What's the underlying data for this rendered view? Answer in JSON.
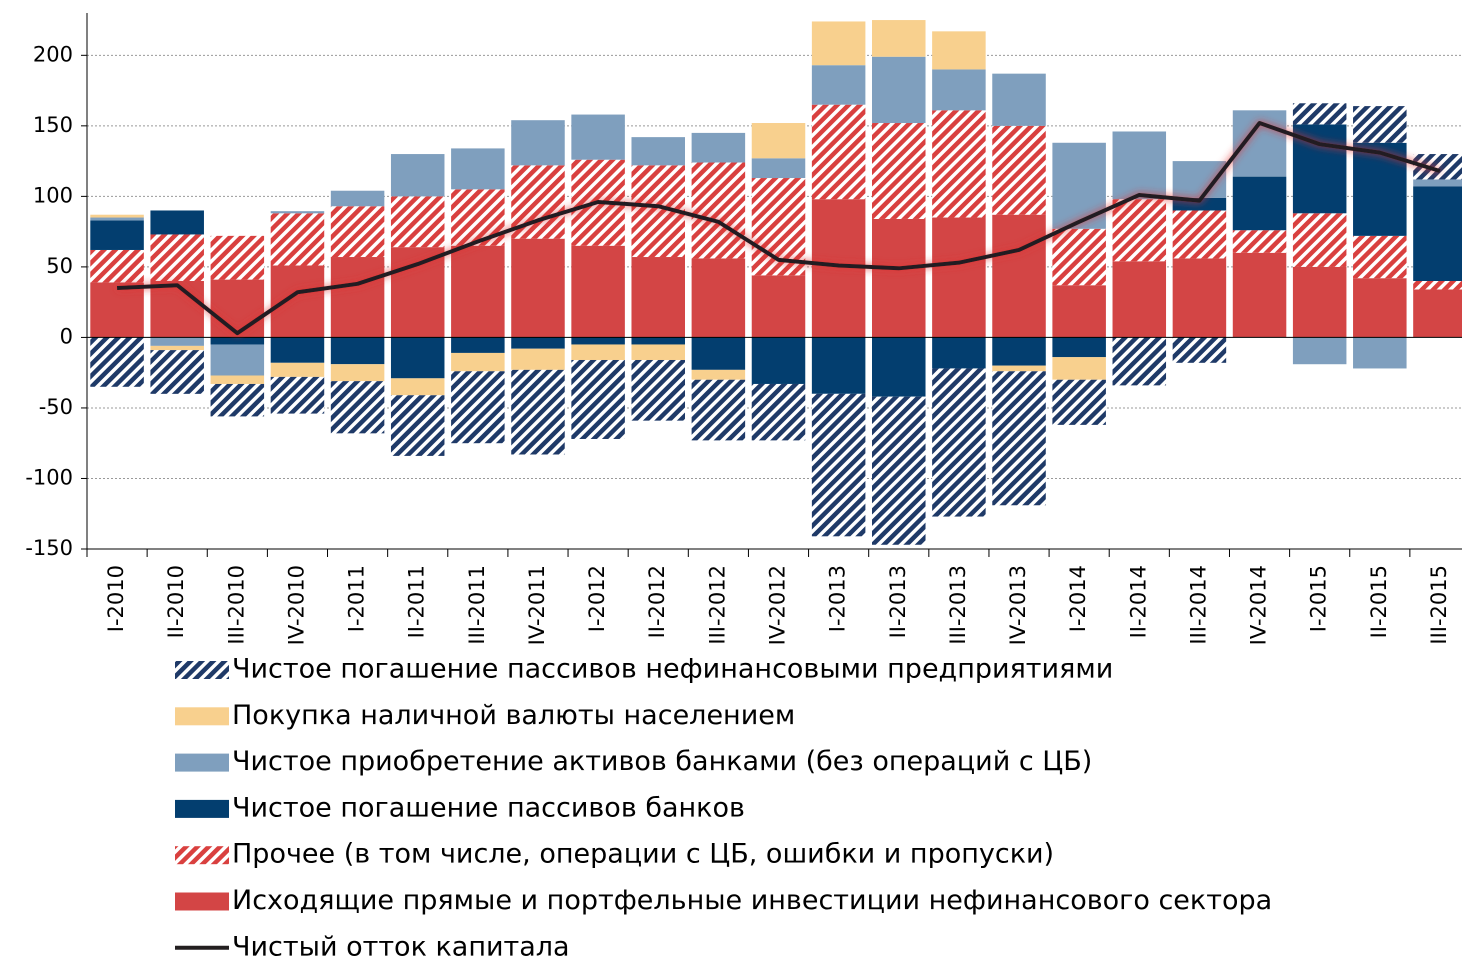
{
  "chart_data": {
    "type": "bar",
    "stacked": true,
    "grid": true,
    "categories": [
      "I-2010",
      "II-2010",
      "III-2010",
      "IV-2010",
      "I-2011",
      "II-2011",
      "III-2011",
      "IV-2011",
      "I-2012",
      "II-2012",
      "III-2012",
      "IV-2012",
      "I-2013",
      "II-2013",
      "III-2013",
      "IV-2013",
      "I-2014",
      "II-2014",
      "III-2014",
      "IV-2014",
      "I-2015",
      "II-2015",
      "III-2015"
    ],
    "ylim": [
      -150,
      230
    ],
    "yticks": [
      -150,
      -100,
      -50,
      0,
      50,
      100,
      150,
      200
    ],
    "series": [
      {
        "name": "Чистое погашение пассивов нефинансовыми предприятиями",
        "color": "#1f3a68",
        "hatched": true,
        "values": [
          -35,
          -31,
          -23,
          -26,
          -37,
          -43,
          -51,
          -60,
          -56,
          -43,
          -43,
          -40,
          -101,
          -105,
          -105,
          -95,
          -32,
          -34,
          -18,
          0,
          15,
          26,
          18
        ]
      },
      {
        "name": "Покупка наличной валюты населением",
        "color": "#f8d08e",
        "hatched": false,
        "values": [
          2,
          -3,
          -6,
          -10,
          -12,
          -12,
          -13,
          -15,
          -11,
          -11,
          -7,
          25,
          31,
          26,
          27,
          -4,
          -16,
          0,
          0,
          0,
          0,
          0,
          0
        ]
      },
      {
        "name": "Чистое приобретение активов банками (без операций с ЦБ)",
        "color": "#7f9fbe",
        "hatched": false,
        "values": [
          2,
          -6,
          -22,
          1.5,
          11,
          30,
          29,
          32,
          32,
          20,
          21,
          14,
          28,
          47,
          29,
          37,
          61,
          48,
          26,
          47,
          -19,
          -22,
          5
        ]
      },
      {
        "name": "Чистое погашение пассивов банков",
        "color": "#033e6f",
        "hatched": false,
        "values": [
          21,
          17,
          -5,
          -18,
          -19,
          -29,
          -11,
          -8,
          -5,
          -5,
          -23,
          -33,
          -40,
          -42,
          -22,
          -20,
          -14,
          0,
          9,
          38,
          63,
          66,
          67
        ]
      },
      {
        "name": "Прочее (в том числе, операции с ЦБ, ошибки и пропуски)",
        "color": "#d9403f",
        "hatched": true,
        "values": [
          23,
          33,
          31,
          37,
          36,
          36,
          40,
          52,
          61,
          65,
          68,
          69,
          67,
          68,
          76,
          63,
          40,
          44,
          34,
          16,
          38,
          30,
          6
        ]
      },
      {
        "name": "Исходящие прямые и портфельные инвестиции нефинансового сектора",
        "color": "#d34545",
        "hatched": false,
        "values": [
          39,
          40,
          41,
          51,
          57,
          64,
          65,
          70,
          65,
          57,
          56,
          44,
          98,
          84,
          85,
          87,
          37,
          54,
          56,
          60,
          50,
          42,
          34
        ]
      },
      {
        "name": "Чистый отток капитала",
        "color": "#231f20",
        "type": "line",
        "values": [
          35,
          37,
          3,
          32,
          38,
          52,
          68,
          83,
          96,
          93,
          82,
          55,
          51,
          49,
          53,
          62,
          82,
          101,
          97,
          152,
          137,
          131,
          118
        ]
      }
    ]
  }
}
